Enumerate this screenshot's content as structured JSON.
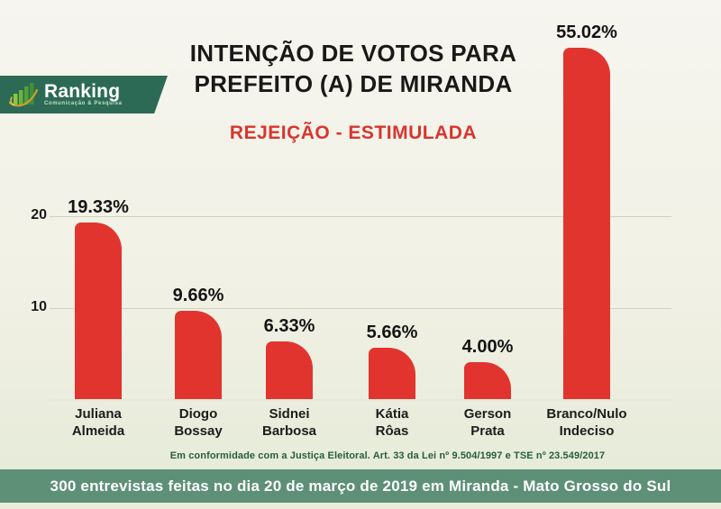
{
  "header": {
    "logo": {
      "brand": "Ranking",
      "tagline": "Comunicação & Pesquisa"
    },
    "title_line1": "INTENÇÃO DE VOTOS PARA",
    "title_line2": "PREFEITO (A) DE MIRANDA",
    "subtitle": "REJEIÇÃO - ESTIMULADA"
  },
  "chart_data": {
    "type": "bar",
    "title": "INTENÇÃO DE VOTOS PARA PREFEITO (A) DE MIRANDA",
    "subtitle": "REJEIÇÃO - ESTIMULADA",
    "categories": [
      [
        "Juliana",
        "Almeida"
      ],
      [
        "Diogo",
        "Bossay"
      ],
      [
        "Sidnei",
        "Barbosa"
      ],
      [
        "Kátia",
        "Rôas"
      ],
      [
        "Gerson",
        "Prata"
      ],
      [
        "Branco/Nulo",
        "Indeciso"
      ]
    ],
    "values": [
      19.33,
      9.66,
      6.33,
      5.66,
      4.0,
      55.02
    ],
    "value_labels": [
      "19.33%",
      "9.66%",
      "6.33%",
      "5.66%",
      "4.00%",
      "55.02%"
    ],
    "yticks": [
      10,
      20
    ],
    "ylim": [
      0,
      38.5
    ],
    "grid": true,
    "legend": false,
    "bar_color": "#e2342e",
    "note": "bar for 55.02% is drawn clipped at the chart top (not to scale)"
  },
  "footnote": "Em conformidade com a Justiça Eleitoral. Art. 33 da Lei nº 9.504/1997 e TSE nº 23.549/2017",
  "footer": {
    "text": "300 entrevistas feitas no dia 20 de março de 2019 em Miranda - Mato Grosso do Sul"
  },
  "colors": {
    "bar": "#e2342e",
    "subtitle": "#d8352e",
    "banner": "#2d6a55",
    "footer_bar": "#5e9077",
    "footnote": "#275e41",
    "gridline": "#cfd1c2"
  }
}
